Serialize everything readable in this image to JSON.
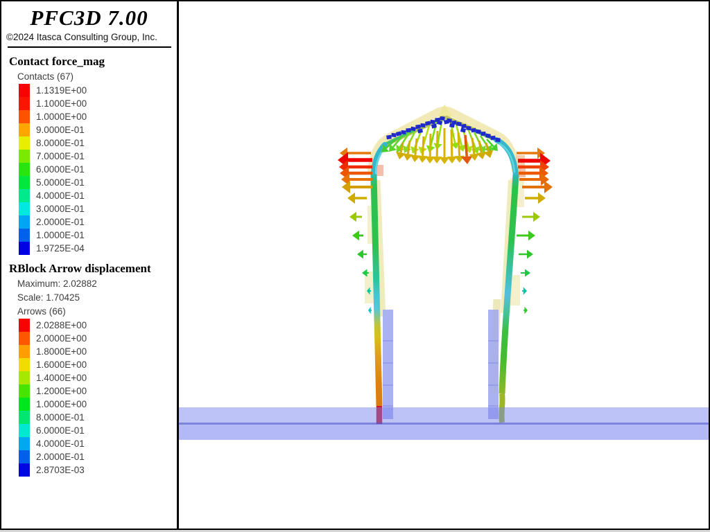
{
  "header": {
    "title": "PFC3D 7.00",
    "copyright": "©2024 Itasca Consulting Group, Inc."
  },
  "contact_section": {
    "heading": "Contact force_mag",
    "count_label": "Contacts (67)",
    "entries": [
      {
        "color": "#f80400",
        "value": "1.1319E+00"
      },
      {
        "color": "#fb1400",
        "value": "1.1000E+00"
      },
      {
        "color": "#fd5200",
        "value": "1.0000E+00"
      },
      {
        "color": "#ffa600",
        "value": "9.0000E-01"
      },
      {
        "color": "#e8ee00",
        "value": "8.0000E-01"
      },
      {
        "color": "#7aea00",
        "value": "7.0000E-01"
      },
      {
        "color": "#28e512",
        "value": "6.0000E-01"
      },
      {
        "color": "#00e73e",
        "value": "5.0000E-01"
      },
      {
        "color": "#00e98c",
        "value": "4.0000E-01"
      },
      {
        "color": "#00e8e0",
        "value": "3.0000E-01"
      },
      {
        "color": "#00a6f2",
        "value": "2.0000E-01"
      },
      {
        "color": "#0062ec",
        "value": "1.0000E-01"
      },
      {
        "color": "#0002e4",
        "value": "1.9725E-04"
      }
    ]
  },
  "rblock_section": {
    "heading": "RBlock Arrow displacement",
    "maximum_label": "Maximum: 2.02882",
    "scale_label": "Scale: 1.70425",
    "count_label": "Arrows (66)",
    "entries": [
      {
        "color": "#f80400",
        "value": "2.0288E+00"
      },
      {
        "color": "#fd5800",
        "value": "2.0000E+00"
      },
      {
        "color": "#ff9e00",
        "value": "1.8000E+00"
      },
      {
        "color": "#f2dc00",
        "value": "1.6000E+00"
      },
      {
        "color": "#a6e800",
        "value": "1.4000E+00"
      },
      {
        "color": "#46e400",
        "value": "1.2000E+00"
      },
      {
        "color": "#00e61e",
        "value": "1.0000E+00"
      },
      {
        "color": "#00e770",
        "value": "8.0000E-01"
      },
      {
        "color": "#00e8d2",
        "value": "6.0000E-01"
      },
      {
        "color": "#00a8f0",
        "value": "4.0000E-01"
      },
      {
        "color": "#0060ea",
        "value": "2.0000E-01"
      },
      {
        "color": "#0008e2",
        "value": "2.8703E-03"
      }
    ]
  },
  "viewport": {
    "background": "#ffffff",
    "ground_band": {
      "upper_fill": "rgba(120,130,238,0.48)",
      "divider_fill": "rgba(88,96,214,0.78)",
      "lower_fill": "rgba(120,130,238,0.56)"
    },
    "fan_arrows": [
      [
        312,
        200,
        292,
        218,
        "#46ce2e",
        2.6
      ],
      [
        322,
        195,
        303,
        217,
        "#5ad42a",
        2.6
      ],
      [
        332,
        190,
        314,
        218,
        "#74d824",
        2.6
      ],
      [
        342,
        185,
        325,
        219,
        "#8eda20",
        2.6
      ],
      [
        352,
        180,
        337,
        220,
        "#a4dc1a",
        2.6
      ],
      [
        362,
        176,
        349,
        220,
        "#b8de14",
        2.6
      ],
      [
        372,
        172,
        361,
        218,
        "#7ce00c",
        2.6
      ],
      [
        380,
        168,
        372,
        214,
        "#8ce012",
        2.4
      ],
      [
        391,
        170,
        400,
        213,
        "#8ce012",
        2.4
      ],
      [
        399,
        174,
        410,
        217,
        "#a0dc18",
        2.6
      ],
      [
        408,
        179,
        420,
        219,
        "#b4de12",
        2.6
      ],
      [
        417,
        184,
        431,
        220,
        "#96da1e",
        2.6
      ],
      [
        426,
        189,
        441,
        219,
        "#7cd826",
        2.6
      ],
      [
        435,
        194,
        451,
        218,
        "#62d42a",
        2.6
      ],
      [
        444,
        199,
        460,
        216,
        "#4ad02e",
        2.6
      ],
      [
        323,
        204,
        318,
        228,
        "#d2ac00",
        3
      ],
      [
        333,
        201,
        329,
        230,
        "#d4ae00",
        3
      ],
      [
        343,
        198,
        340,
        232,
        "#d6b000",
        3
      ],
      [
        353,
        195,
        351,
        233,
        "#d6b200",
        3
      ],
      [
        363,
        191,
        362,
        234,
        "#d8b400",
        3
      ],
      [
        373,
        187,
        372,
        234,
        "#d8b400",
        3
      ],
      [
        383,
        183,
        383,
        235,
        "#d8b400",
        3
      ],
      [
        393,
        185,
        394,
        234,
        "#d8b400",
        3
      ],
      [
        403,
        189,
        405,
        233,
        "#d6b200",
        3
      ],
      [
        413,
        193,
        416,
        235,
        "#e25610",
        3.6
      ],
      [
        423,
        197,
        427,
        230,
        "#d4ae00",
        3
      ],
      [
        433,
        201,
        438,
        228,
        "#d2ac00",
        3
      ],
      [
        443,
        204,
        449,
        226,
        "#d0aa00",
        3
      ]
    ],
    "left_arrows": [
      [
        277,
        219,
        232,
        219,
        "#e4780a",
        3.5
      ],
      [
        279,
        229,
        229,
        229,
        "#ee0402",
        5.5
      ],
      [
        279,
        239,
        231,
        239,
        "#f02a02",
        4.5
      ],
      [
        279,
        248,
        232,
        248,
        "#ec5604",
        4.5
      ],
      [
        280,
        257,
        234,
        257,
        "#e87206",
        4
      ],
      [
        279,
        268,
        235,
        268,
        "#d29e02",
        4
      ],
      [
        271,
        284,
        243,
        284,
        "#d0ac00",
        3.5
      ],
      [
        264,
        311,
        246,
        311,
        "#9cc804",
        3
      ],
      [
        266,
        338,
        250,
        338,
        "#3cca1c",
        3
      ],
      [
        271,
        365,
        257,
        365,
        "#2ec62a",
        2.5
      ],
      [
        274,
        392,
        264,
        392,
        "#1cc846",
        2
      ],
      [
        277,
        418,
        271,
        418,
        "#00c8a4",
        2
      ],
      [
        278,
        446,
        273,
        446,
        "#00c4c4",
        1.8
      ]
    ],
    "right_arrows": [
      [
        487,
        219,
        528,
        219,
        "#e4780a",
        3.5
      ],
      [
        489,
        230,
        536,
        230,
        "#ee0402",
        5.5
      ],
      [
        489,
        239,
        534,
        239,
        "#ee4204",
        4.5
      ],
      [
        490,
        248,
        533,
        248,
        "#ec5a04",
        4.5
      ],
      [
        491,
        257,
        534,
        257,
        "#e86a06",
        4
      ],
      [
        495,
        268,
        539,
        268,
        "#e07206",
        4
      ],
      [
        499,
        284,
        529,
        284,
        "#d0ac00",
        3.5
      ],
      [
        495,
        311,
        521,
        311,
        "#9cc804",
        3
      ],
      [
        487,
        338,
        514,
        338,
        "#3cca1c",
        3
      ],
      [
        490,
        365,
        511,
        365,
        "#2ec62a",
        2.5
      ],
      [
        493,
        392,
        507,
        392,
        "#1cc846",
        2
      ],
      [
        495,
        418,
        502,
        418,
        "#00c8a4",
        2
      ],
      [
        497,
        446,
        503,
        446,
        "#2ec62a",
        1.8
      ]
    ],
    "contact_cubes": [
      [
        303,
        196,
        -8
      ],
      [
        310,
        193,
        6
      ],
      [
        317,
        191,
        -12
      ],
      [
        324,
        189,
        4
      ],
      [
        331,
        186,
        -5
      ],
      [
        338,
        184,
        10
      ],
      [
        345,
        181,
        -7
      ],
      [
        352,
        179,
        5
      ],
      [
        359,
        176,
        -10
      ],
      [
        366,
        174,
        8
      ],
      [
        373,
        171,
        -4
      ],
      [
        380,
        169,
        6
      ],
      [
        390,
        172,
        8
      ],
      [
        397,
        175,
        -6
      ],
      [
        404,
        177,
        10
      ],
      [
        411,
        180,
        -8
      ],
      [
        418,
        183,
        5
      ],
      [
        425,
        186,
        -10
      ],
      [
        432,
        188,
        7
      ],
      [
        439,
        191,
        -5
      ],
      [
        446,
        194,
        9
      ],
      [
        453,
        197,
        -7
      ],
      [
        460,
        200,
        5
      ],
      [
        376,
        175,
        14
      ],
      [
        386,
        174,
        -12
      ],
      [
        394,
        179,
        10
      ],
      [
        368,
        180,
        -14
      ],
      [
        410,
        186,
        12
      ],
      [
        348,
        187,
        -12
      ]
    ],
    "cube_color": "#1f2acb"
  }
}
